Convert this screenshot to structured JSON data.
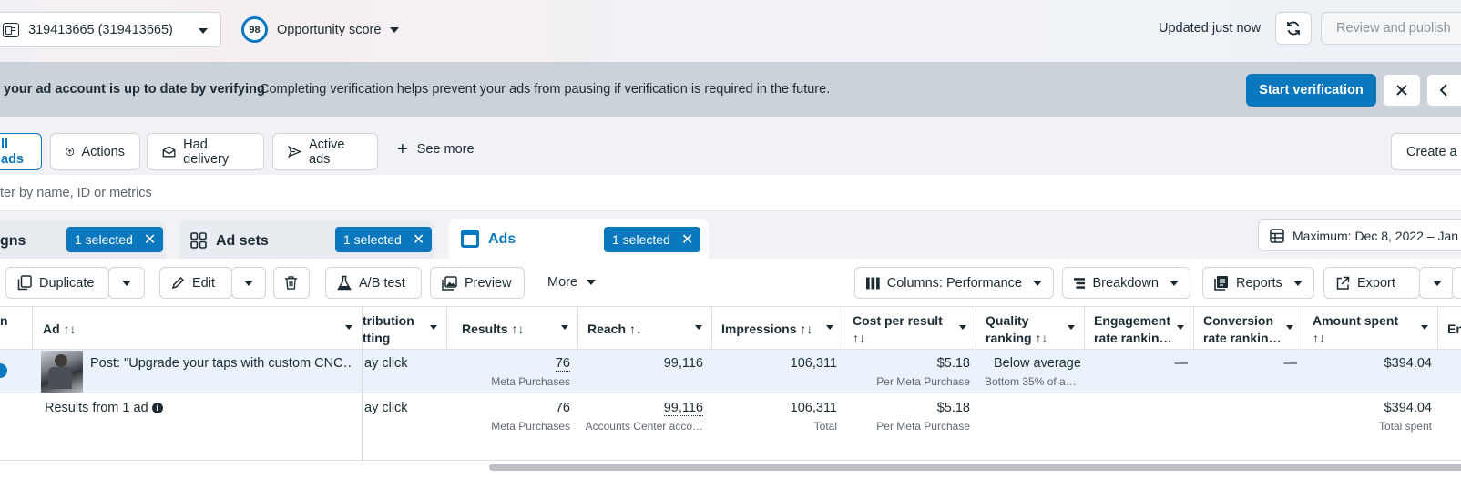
{
  "header": {
    "account_label": "319413665 (319413665)",
    "opportunity_score": "98",
    "opportunity_label": "Opportunity score",
    "updated_text": "Updated just now",
    "review_label": "Review and publish"
  },
  "banner": {
    "bold_text": "your ad account is up to date by verifying",
    "text": "Completing verification helps prevent your ads from pausing if verification is required in the future.",
    "start_label": "Start verification"
  },
  "filters": {
    "all_ads": "ll ads",
    "actions": "Actions",
    "had_delivery": "Had delivery",
    "active_ads": "Active ads",
    "see_more": "See more",
    "create_label": "Create a v"
  },
  "search": {
    "placeholder": "ter by name, ID or metrics"
  },
  "tabs": {
    "campaigns": "gns",
    "campaigns_selected": "1 selected",
    "adsets": "Ad sets",
    "adsets_selected": "1 selected",
    "ads": "Ads",
    "ads_selected": "1 selected",
    "date_range": "Maximum: Dec 8, 2022 – Jan"
  },
  "toolbar": {
    "duplicate": "Duplicate",
    "edit": "Edit",
    "ab_test": "A/B test",
    "preview": "Preview",
    "more": "More",
    "columns": "Columns: Performance",
    "breakdown": "Breakdown",
    "reports": "Reports",
    "export": "Export"
  },
  "table": {
    "headers": {
      "status": "n",
      "ad": "Ad ↑↓",
      "attribution_1": "tribution",
      "attribution_2": "tting",
      "results": "Results ↑↓",
      "reach": "Reach ↑↓",
      "impressions": "Impressions ↑↓",
      "cpr_1": "Cost per result",
      "cpr_2": "↑↓",
      "quality_1": "Quality",
      "quality_2": "ranking ↑↓",
      "engagement_1": "Engagement",
      "engagement_2": "rate rankin…",
      "conversion_1": "Conversion",
      "conversion_2": "rate rankin…",
      "amount_1": "Amount spent",
      "amount_2": "↑↓",
      "ends": "En"
    },
    "row": {
      "ad_name": "Post: \"Upgrade your taps with custom CNC…",
      "attribution": "ay click",
      "results": "76",
      "results_sub": "Meta Purchases",
      "reach": "99,116",
      "impressions": "106,311",
      "cpr": "$5.18",
      "cpr_sub": "Per Meta Purchase",
      "quality": "Below average",
      "quality_sub": "Bottom 35% of a…",
      "engagement": "—",
      "conversion": "—",
      "amount": "$394.04"
    },
    "totals": {
      "label": "Results from 1 ad",
      "attribution": "ay click",
      "results": "76",
      "results_sub": "Meta Purchases",
      "reach": "99,116",
      "reach_sub": "Accounts Center acco…",
      "impressions": "106,311",
      "impressions_sub": "Total",
      "cpr": "$5.18",
      "cpr_sub": "Per Meta Purchase",
      "amount": "$394.04",
      "amount_sub": "Total spent"
    }
  },
  "colors": {
    "accent": "#0a78be",
    "banner_bg": "#cbd2d9",
    "row_selected_bg": "#eaf3fb"
  }
}
